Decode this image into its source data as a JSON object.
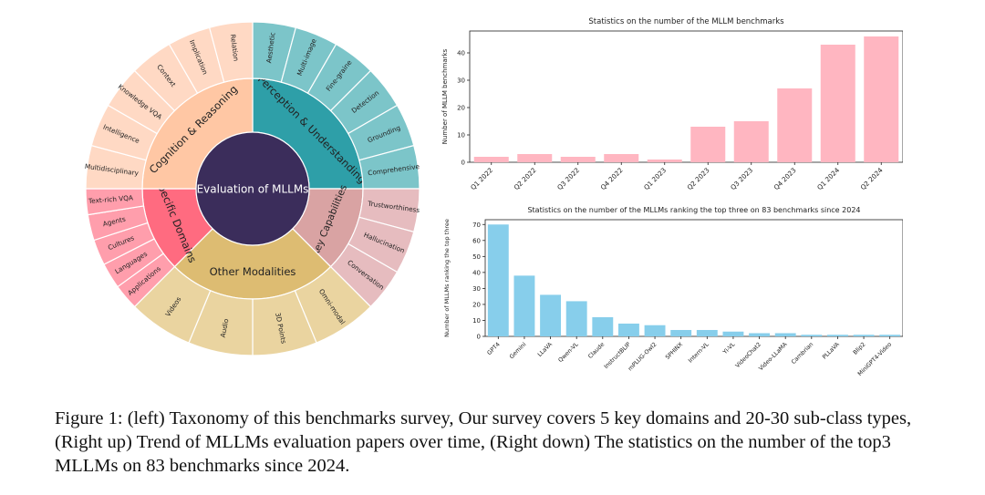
{
  "colors": {
    "center": "#3b2d5b",
    "cognition": "#ffc7a4",
    "cognition_outer": "#ffd9c4",
    "perception": "#2e9fa8",
    "perception_outer": "#7cc5c9",
    "key": "#d9a3a3",
    "key_outer": "#e6bcbf",
    "other": "#ddbc72",
    "other_outer": "#ead4a0",
    "specific": "#ff6b80",
    "specific_outer": "#ff9eac",
    "bar_top": "#ffb6c1",
    "bar_bottom": "#87ceeb"
  },
  "chart_data": [
    {
      "type": "sunburst",
      "center_label": "Evaluation of MLLMs",
      "domains": [
        {
          "name": "Perception & Understanding",
          "children": [
            "Aesthetic",
            "Multi-image",
            "Fine-graine",
            "Detection",
            "Grounding",
            "Comprehensive"
          ]
        },
        {
          "name": "Key Capabilities",
          "children": [
            "Trustworthiness",
            "Hallucination",
            "Conversation"
          ]
        },
        {
          "name": "Other Modalities",
          "children": [
            "Omni-modal",
            "3D Points",
            "Audio",
            "Videos"
          ]
        },
        {
          "name": "Specific Domains",
          "children": [
            "Applications",
            "Languages",
            "Cultures",
            "Agents",
            "Text-rich VQA"
          ]
        },
        {
          "name": "Cognition & Reasoning",
          "children": [
            "Multidisciplinary",
            "Intelligence",
            "Knowledge VQA",
            "Context",
            "Implication",
            "Relation"
          ]
        }
      ]
    },
    {
      "type": "bar",
      "title": "Statistics on the number of the MLLM benchmarks",
      "ylabel": "Number of MLLM benchmarks",
      "xlabel": "",
      "categories": [
        "Q1 2022",
        "Q2 2022",
        "Q3 2022",
        "Q4 2022",
        "Q1 2023",
        "Q2 2023",
        "Q3 2023",
        "Q4 2023",
        "Q1 2024",
        "Q2 2024"
      ],
      "values": [
        2,
        3,
        2,
        3,
        1,
        13,
        15,
        27,
        43,
        46
      ],
      "ylim": [
        0,
        48
      ],
      "yticks": [
        0,
        10,
        20,
        30,
        40
      ]
    },
    {
      "type": "bar",
      "title": "Statistics on the number of the MLLMs ranking the top three on 83 benchmarks since 2024",
      "ylabel": "Number of MLLMs ranking the top three",
      "xlabel": "",
      "categories": [
        "GPT4",
        "Gemini",
        "LLaVA",
        "Qwen-VL",
        "Claude",
        "InstructBLIP",
        "mPLUG-Owl2",
        "SPHINX",
        "Intern-VL",
        "Yi-VL",
        "VideoChat2",
        "Video-LLaMA",
        "Cambrian",
        "PLLaVA",
        "Blip2",
        "MiniGPT4-Video"
      ],
      "values": [
        70,
        38,
        26,
        22,
        12,
        8,
        7,
        4,
        4,
        3,
        2,
        2,
        1,
        1,
        1,
        1
      ],
      "ylim": [
        0,
        73
      ],
      "yticks": [
        0,
        10,
        20,
        30,
        40,
        50,
        60,
        70
      ]
    }
  ],
  "caption": "Figure 1: (left) Taxonomy of this benchmarks survey, Our survey covers 5 key domains and 20-30 sub-class types, (Right up) Trend of MLLMs evaluation papers over time, (Right down) The statistics on the number of the top3 MLLMs on 83 benchmarks since 2024."
}
